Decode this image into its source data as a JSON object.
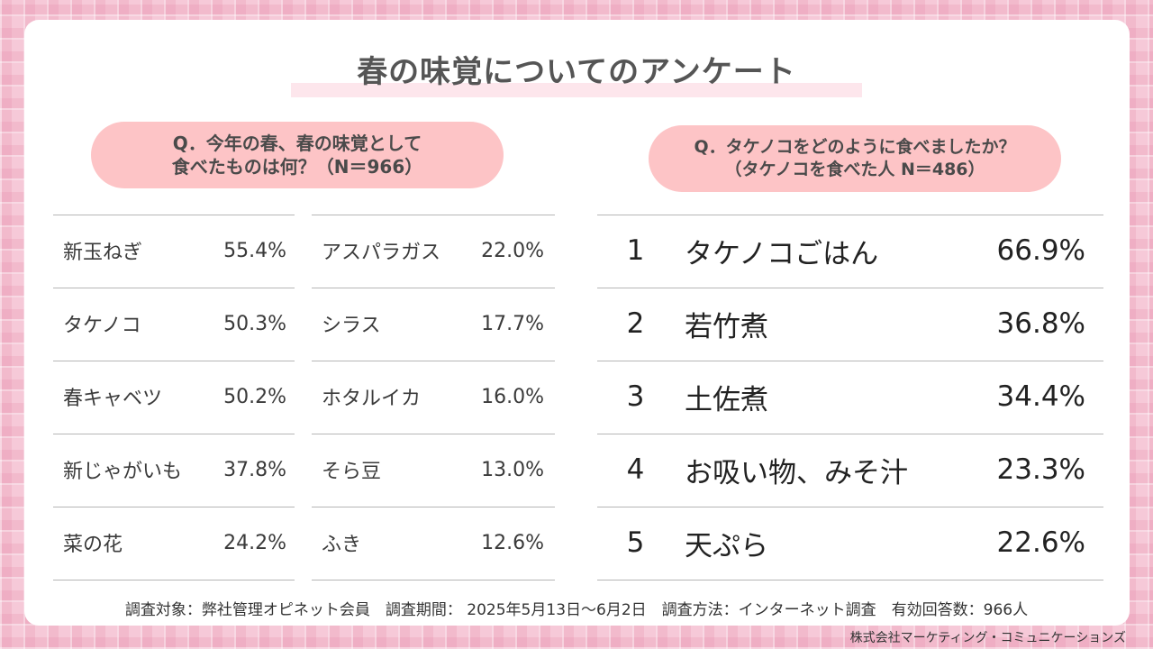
{
  "title": "春の味覚についてのアンケート",
  "left_question": {
    "line1": "Q．今年の春、春の味覚として",
    "line2": "食べたものは何？（N＝966）"
  },
  "right_question": {
    "line1": "Q．タケノコをどのように食べましたか？",
    "line2": "（タケノコを食べた人 N＝486）"
  },
  "left_items_col1": [
    {
      "name": "新玉ねぎ",
      "pct": "55.4%"
    },
    {
      "name": "タケノコ",
      "pct": "50.3%"
    },
    {
      "name": "春キャベツ",
      "pct": "50.2%"
    },
    {
      "name": "新じゃがいも",
      "pct": "37.8%"
    },
    {
      "name": "菜の花",
      "pct": "24.2%"
    }
  ],
  "left_items_col2": [
    {
      "name": "アスパラガス",
      "pct": "22.0%"
    },
    {
      "name": "シラス",
      "pct": "17.7%"
    },
    {
      "name": "ホタルイカ",
      "pct": "16.0%"
    },
    {
      "name": "そら豆",
      "pct": "13.0%"
    },
    {
      "name": "ふき",
      "pct": "12.6%"
    }
  ],
  "right_items": [
    {
      "rank": "1",
      "name": "タケノコごはん",
      "pct": "66.9%"
    },
    {
      "rank": "2",
      "name": "若竹煮",
      "pct": "36.8%"
    },
    {
      "rank": "3",
      "name": "土佐煮",
      "pct": "34.4%"
    },
    {
      "rank": "4",
      "name": "お吸い物、みそ汁",
      "pct": "23.3%"
    },
    {
      "rank": "5",
      "name": "天ぷら",
      "pct": "22.6%"
    }
  ],
  "footer": "調査対象：弊社管理オピネット会員　調査期間： 2025年5月13日～6月2日　調査方法：インターネット調査　有効回答数：966人",
  "credit": "株式会社マーケティング・コミュニケーションズ",
  "colors": {
    "background": "#f6c9d8",
    "pill": "#fdc4c6",
    "title_band": "#fde6ec"
  }
}
